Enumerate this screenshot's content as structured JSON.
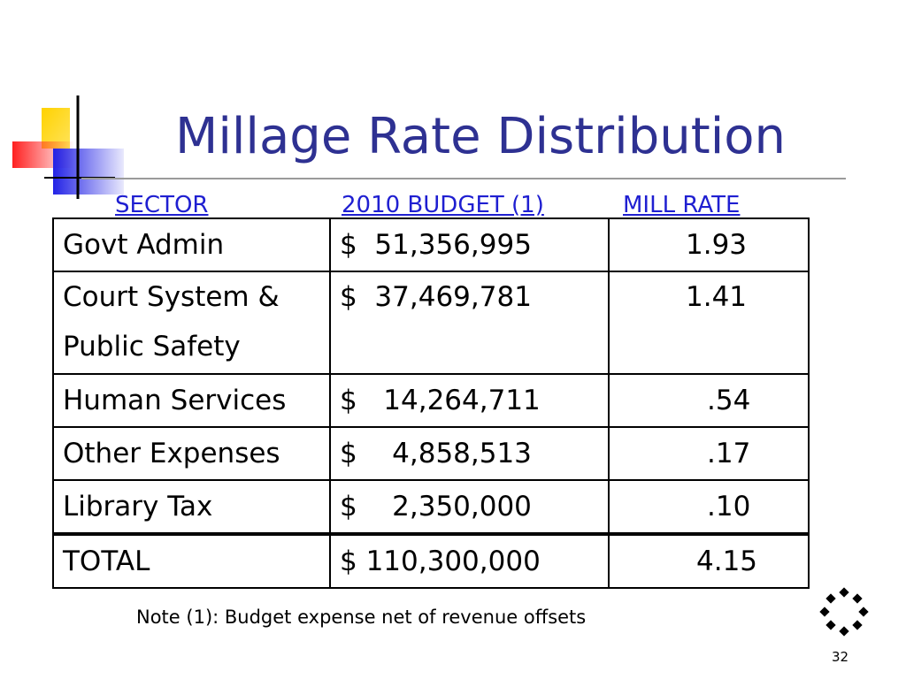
{
  "slide": {
    "title": "Millage Rate Distribution",
    "column_headers": [
      "SECTOR",
      "2010 BUDGET (1)",
      "MILL RATE"
    ],
    "rows": [
      {
        "sector_line1": "Govt Admin",
        "sector_line2": "",
        "budget": "$  51,356,995",
        "mill_rate": "1.93"
      },
      {
        "sector_line1": "Court System &",
        "sector_line2": "Public Safety",
        "budget": "$  37,469,781",
        "mill_rate": "1.41"
      },
      {
        "sector_line1": "Human Services",
        "sector_line2": "",
        "budget": "$   14,264,711",
        "mill_rate": ".54"
      },
      {
        "sector_line1": "Other Expenses",
        "sector_line2": "",
        "budget": "$    4,858,513",
        "mill_rate": ".17"
      },
      {
        "sector_line1": "Library Tax",
        "sector_line2": "",
        "budget": "$    2,350,000",
        "mill_rate": ".10"
      }
    ],
    "total": {
      "sector": "TOTAL",
      "budget": "$ 110,300,000",
      "mill_rate": "4.15"
    },
    "note": "Note (1): Budget expense net of revenue offsets",
    "slide_number": "32",
    "colors": {
      "title": "#2e3192",
      "header": "#1f1fd1",
      "accent_yellow": "#ffd200",
      "accent_red": "#ff2a2a",
      "accent_blue": "#2e2ee0"
    }
  }
}
